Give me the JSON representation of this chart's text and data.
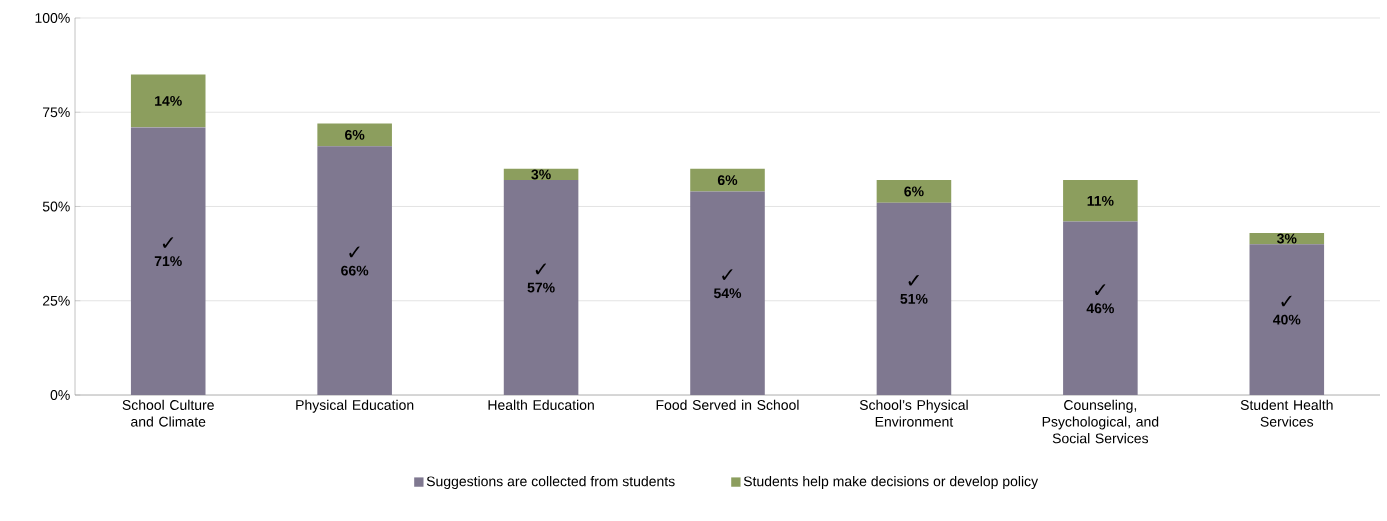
{
  "chart_data": {
    "type": "bar",
    "stacked": true,
    "categories": [
      "School Culture and Climate",
      "Physical Education",
      "Health Education",
      "Food Served in School",
      "School’s Physical Environment",
      "Counseling, Psychological, and Social Services",
      "Student Health Services"
    ],
    "series": [
      {
        "name": "Suggestions are collected from students",
        "color": "#7f7890",
        "values": [
          71,
          66,
          57,
          54,
          51,
          46,
          40
        ],
        "value_labels": [
          "71%",
          "66%",
          "57%",
          "54%",
          "51%",
          "46%",
          "40%"
        ]
      },
      {
        "name": "Students help make decisions or develop policy",
        "color": "#8c9e5e",
        "values": [
          14,
          6,
          3,
          6,
          6,
          11,
          3
        ],
        "value_labels": [
          "14%",
          "6%",
          "3%",
          "6%",
          "6%",
          "11%",
          "3%"
        ]
      }
    ],
    "ylim": [
      0,
      100
    ],
    "yticks": [
      {
        "value": 0,
        "label": "0%"
      },
      {
        "value": 25,
        "label": "25%"
      },
      {
        "value": 50,
        "label": "50%"
      },
      {
        "value": 75,
        "label": "75%"
      },
      {
        "value": 100,
        "label": "100%"
      }
    ],
    "grid": "y",
    "legend": "bottom",
    "annotations": [
      "✓",
      "✓",
      "✓",
      "✓",
      "✓",
      "✓",
      "✓"
    ]
  }
}
